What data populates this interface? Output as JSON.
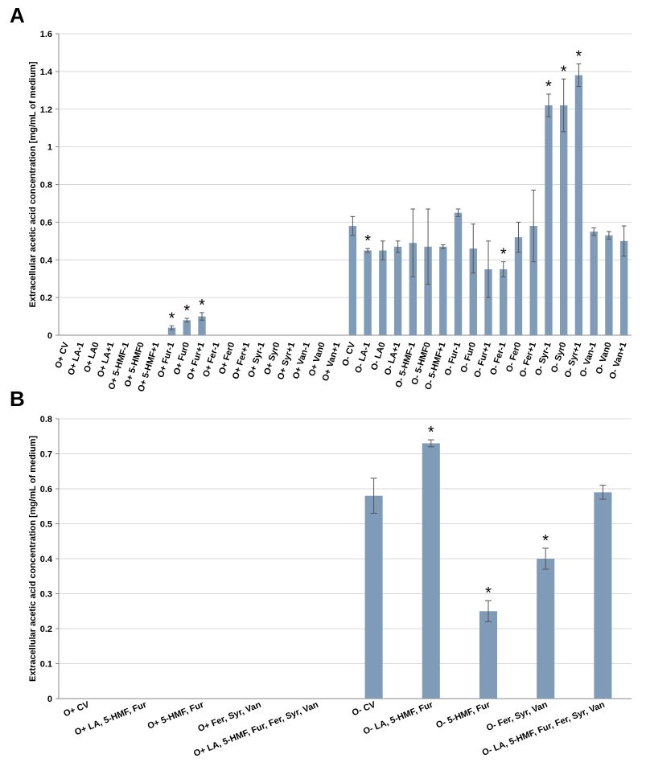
{
  "chart_data": [
    {
      "type": "bar",
      "panel": "A",
      "ylabel": "Extracellular acetic acid concentration [mg/mL of medium]",
      "categories": [
        "O+ CV",
        "O+ LA-1",
        "O+ LA0",
        "O+ LA+1",
        "O+ 5-HMF-1",
        "O+ 5-HMF0",
        "O+ 5-HMF+1",
        "O+ Fur-1",
        "O+ Fur0",
        "O+ Fur+1",
        "O+ Fer-1",
        "O+ Fer0",
        "O+ Fer+1",
        "O+ Syr-1",
        "O+ Syr0",
        "O+ Syr+1",
        "O+ Van-1",
        "O+ Van0",
        "O+ Van+1",
        "O- CV",
        "O- LA-1",
        "O- LA0",
        "O- LA+1",
        "O- 5-HMF-1",
        "O- 5-HMF0",
        "O- 5-HMF+1",
        "O- Fur-1",
        "O- Fur0",
        "O- Fur+1",
        "O- Fer-1",
        "O- Fer0",
        "O- Fer+1",
        "O- Syr-1",
        "O- Syr0",
        "O- Syr+1",
        "O- Van-1",
        "O- Van0",
        "O- Van+1"
      ],
      "values": [
        0,
        0,
        0,
        0,
        0,
        0,
        0,
        0.04,
        0.08,
        0.1,
        0,
        0,
        0,
        0,
        0,
        0,
        0,
        0,
        0,
        0.58,
        0.45,
        0.45,
        0.47,
        0.49,
        0.47,
        0.47,
        0.65,
        0.46,
        0.35,
        0.35,
        0.52,
        0.58,
        1.22,
        1.22,
        1.38,
        0.55,
        0.53,
        0.5
      ],
      "errors": [
        null,
        null,
        null,
        null,
        null,
        null,
        null,
        0.01,
        0.01,
        0.02,
        null,
        null,
        null,
        null,
        null,
        null,
        null,
        null,
        null,
        0.05,
        0.01,
        0.05,
        0.03,
        0.18,
        0.2,
        0.01,
        0.02,
        0.13,
        0.15,
        0.04,
        0.08,
        0.19,
        0.06,
        0.14,
        0.06,
        0.02,
        0.02,
        0.08
      ],
      "significance": [
        null,
        null,
        null,
        null,
        null,
        null,
        null,
        "*",
        "*",
        "*",
        null,
        null,
        null,
        null,
        null,
        null,
        null,
        null,
        null,
        null,
        "*",
        null,
        null,
        null,
        null,
        null,
        null,
        null,
        null,
        "*",
        null,
        null,
        "*",
        "*",
        "*",
        null,
        null,
        null
      ],
      "color": "#7f9bb8",
      "ylim": [
        0,
        1.6
      ],
      "yticks": [
        0,
        0.2,
        0.4,
        0.6,
        0.8,
        1,
        1.2,
        1.4,
        1.6
      ],
      "grid": true
    },
    {
      "type": "bar",
      "panel": "B",
      "ylabel": "Extracellular acetic acid concentration [mg/mL of medium]",
      "categories": [
        "O+ CV",
        "O+ LA, 5-HMF, Fur",
        "O+ 5-HMF, Fur",
        "O+ Fer, Syr, Van",
        "O+ LA, 5-HMF, Fur, Fer, Syr, Van",
        "O- CV",
        "O- LA, 5-HMF, Fur",
        "O- 5-HMF, Fur",
        "O- Fer, Syr, Van",
        "O- LA, 5-HMF, Fur, Fer, Syr, Van"
      ],
      "values": [
        0,
        0,
        0,
        0,
        0,
        0.58,
        0.73,
        0.25,
        0.4,
        0.59
      ],
      "errors": [
        null,
        null,
        null,
        null,
        null,
        0.05,
        0.01,
        0.03,
        0.03,
        0.02
      ],
      "significance": [
        null,
        null,
        null,
        null,
        null,
        null,
        "*",
        "*",
        "*",
        null
      ],
      "color": "#7f9bb8",
      "ylim": [
        0,
        0.8
      ],
      "yticks": [
        0,
        0.1,
        0.2,
        0.3,
        0.4,
        0.5,
        0.6,
        0.7,
        0.8
      ],
      "grid": true
    }
  ]
}
